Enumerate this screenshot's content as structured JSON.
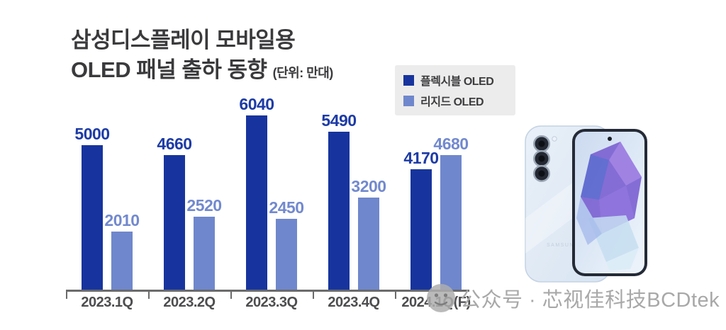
{
  "title": {
    "line1": "삼성디스플레이 모바일용",
    "line2": "OLED 패널 출하 동향",
    "unit_note": "(단위: 만대)"
  },
  "legend": [
    {
      "label": "플렉시블 OLED",
      "color": "#17349e"
    },
    {
      "label": "리지드 OLED",
      "color": "#6f87cc"
    }
  ],
  "chart_data": {
    "type": "bar",
    "title": "삼성디스플레이 모바일용 OLED 패널 출하 동향",
    "unit": "만대",
    "categories": [
      "2023.1Q",
      "2023.2Q",
      "2023.3Q",
      "2023.4Q",
      "2024.1Q(F)"
    ],
    "series": [
      {
        "name": "플렉시블 OLED",
        "color": "#17349e",
        "label_color": "#1d3ba6",
        "values": [
          5000,
          4660,
          6040,
          5490,
          4170
        ]
      },
      {
        "name": "리지드 OLED",
        "color": "#6f87cc",
        "label_color": "#7289ce",
        "values": [
          2010,
          2520,
          2450,
          3200,
          4680
        ]
      }
    ],
    "ylim": [
      0,
      6500
    ],
    "grid": false,
    "axis": "x-only",
    "value_labels": true,
    "legend_position": "top-right"
  },
  "phone": {
    "description": "samsung-galaxy-phone-front-and-back",
    "brand_text": "SAMSUNG",
    "body_color": "#e3ecf6"
  },
  "watermark": {
    "icon": "wechat-official-account-icon",
    "text": "公众号 · 芯视佳科技BCDtek",
    "color": "#a8a8a8"
  },
  "colors": {
    "background": "#ffffff",
    "title_text": "#3a3a3c",
    "axis": "#6b6b6b",
    "category_text": "#4d4d4f",
    "legend_background": "#ececec"
  }
}
